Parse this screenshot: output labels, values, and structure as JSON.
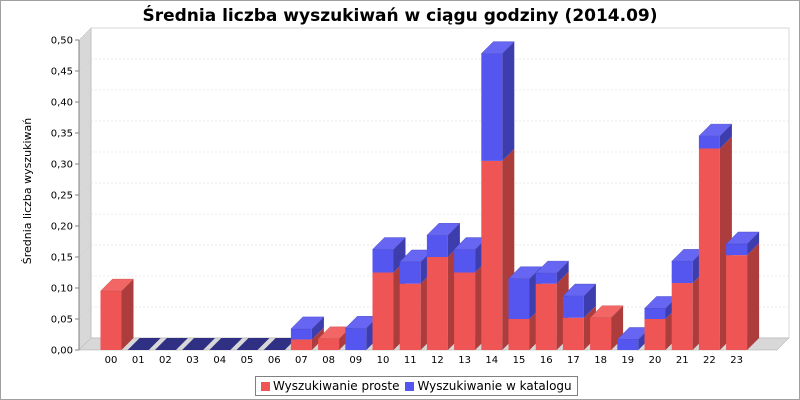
{
  "chart_data": {
    "type": "bar",
    "stacked": true,
    "style": "3d",
    "title": "Średnia liczba wyszukiwań w ciągu godziny (2014.09)",
    "ylabel": "Średnia liczba wyszukiwań",
    "xlabel": "",
    "ylim": [
      0,
      0.5
    ],
    "yticks": [
      "0,00",
      "0,05",
      "0,10",
      "0,15",
      "0,20",
      "0,25",
      "0,30",
      "0,35",
      "0,40",
      "0,45",
      "0,50"
    ],
    "grid": true,
    "legend_position": "bottom",
    "categories": [
      "00",
      "01",
      "02",
      "03",
      "04",
      "05",
      "06",
      "07",
      "08",
      "09",
      "10",
      "11",
      "12",
      "13",
      "14",
      "15",
      "16",
      "17",
      "18",
      "19",
      "20",
      "21",
      "22",
      "23"
    ],
    "series": [
      {
        "name": "Wyszukiwanie proste",
        "color": "#f05555",
        "values": [
          0.095,
          0,
          0,
          0,
          0,
          0,
          0,
          0.017,
          0.018,
          0,
          0.125,
          0.107,
          0.15,
          0.125,
          0.305,
          0.05,
          0.107,
          0.052,
          0.052,
          0,
          0.05,
          0.108,
          0.325,
          0.153
        ]
      },
      {
        "name": "Wyszukiwanie w katalogu",
        "color": "#5555f0",
        "values": [
          0,
          0,
          0,
          0,
          0,
          0,
          0,
          0.017,
          0,
          0.035,
          0.037,
          0.035,
          0.035,
          0.037,
          0.173,
          0.065,
          0.017,
          0.035,
          0,
          0.017,
          0.017,
          0.035,
          0.02,
          0.018
        ]
      }
    ]
  }
}
